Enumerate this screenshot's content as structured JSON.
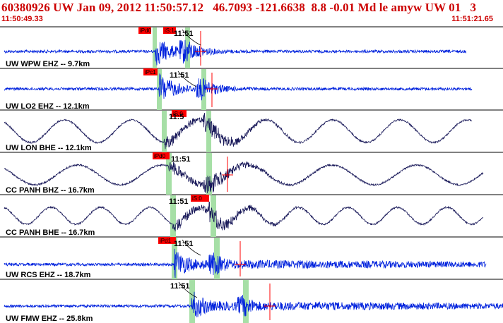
{
  "header": {
    "event_line": "60380926 UW Jan 09, 2012 11:50:57.12   46.7093 -121.6638  8.8 -0.01 Md le amyw UW 01   3",
    "time_start": "11:50:49.33",
    "time_end": "11:51:21.65"
  },
  "colors": {
    "header_text": "#cc0000",
    "ehz_trace": "#0022dd",
    "bhe_trace": "#1a1a5a",
    "pick_flag": "#ff0000",
    "pick_window": "#a6dfa6",
    "separator": "#000000"
  },
  "channels": [
    {
      "label": "UW WPW EHZ -- 9.7km",
      "type": "EHZ",
      "stamp": "11:51",
      "p_pick": "iPd0",
      "s_pick": "iS:1"
    },
    {
      "label": "UW LO2 EHZ -- 12.1km",
      "type": "EHZ",
      "stamp": "11:51",
      "p_pick": "iPc1",
      "s_pick": ""
    },
    {
      "label": "UW LON BHE -- 12.1km",
      "type": "BHE",
      "stamp": "11:5",
      "p_pick": "",
      "s_pick": "iS:0"
    },
    {
      "label": "CC PANH BHZ -- 16.7km",
      "type": "BHZ",
      "stamp": "11:51",
      "p_pick": "iPd0",
      "s_pick": ""
    },
    {
      "label": "CC PANH BHE -- 16.7km",
      "type": "BHE",
      "stamp": "11:51",
      "p_pick": "",
      "s_pick": "iS:0"
    },
    {
      "label": "UW RCS EHZ -- 18.7km",
      "type": "EHZ",
      "stamp": "11:51",
      "p_pick": "iPd1",
      "s_pick": ""
    },
    {
      "label": "UW FMW EHZ -- 25.8km",
      "type": "EHZ",
      "stamp": "11:51",
      "p_pick": "",
      "s_pick": ""
    }
  ]
}
